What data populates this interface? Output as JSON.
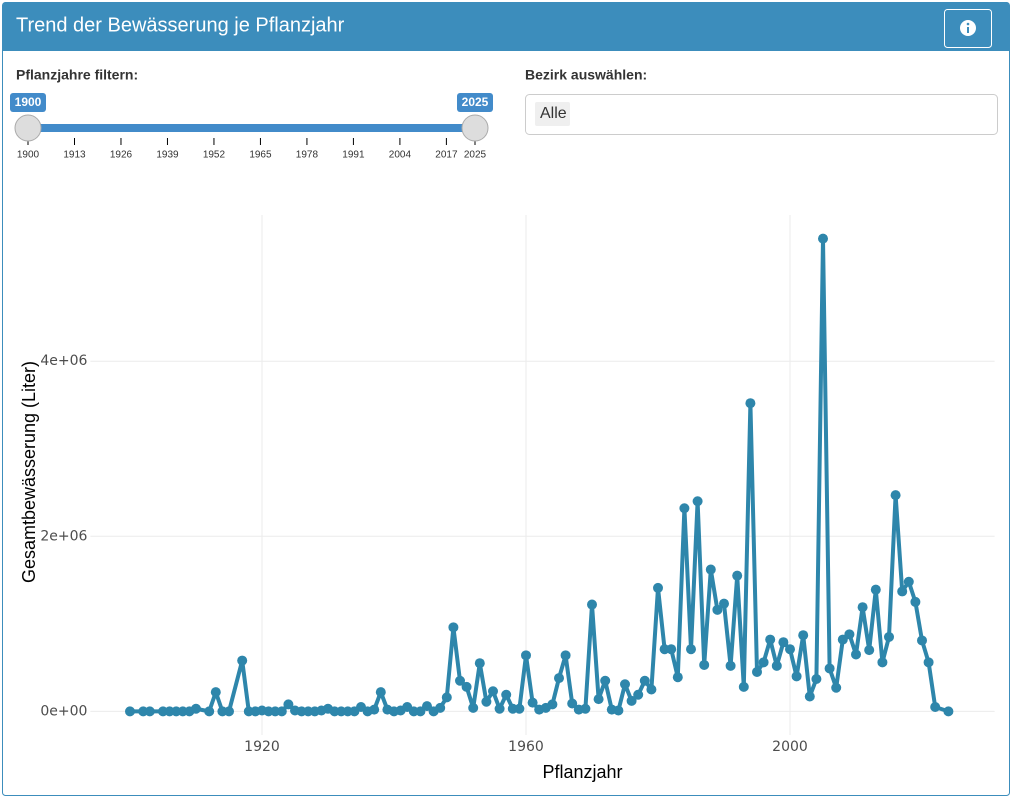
{
  "header": {
    "title": "Trend der Bewässerung je Pflanzjahr"
  },
  "filters": {
    "year_label": "Pflanzjahre filtern:",
    "year_from": 1900,
    "year_to": 2025,
    "year_ticks": [
      1900,
      1913,
      1926,
      1939,
      1952,
      1965,
      1978,
      1991,
      2004,
      2017,
      2025
    ],
    "district_label": "Bezirk auswählen:",
    "district_selected": "Alle"
  },
  "chart_data": {
    "type": "line",
    "xlabel": "Pflanzjahr",
    "ylabel": "Gesamtbewässerung (Liter)",
    "color": "#2e86ab",
    "grid": true,
    "xlim": [
      1894,
      2031
    ],
    "xticks": [
      1920,
      1960,
      2000
    ],
    "ylim": [
      -270000,
      5670000
    ],
    "yticks": [
      {
        "value": 0,
        "label": "0e+00"
      },
      {
        "value": 2000000,
        "label": "2e+06"
      },
      {
        "value": 4000000,
        "label": "4e+06"
      }
    ],
    "x": [
      1900,
      1902,
      1903,
      1905,
      1906,
      1907,
      1908,
      1909,
      1910,
      1912,
      1913,
      1914,
      1915,
      1917,
      1918,
      1919,
      1920,
      1921,
      1922,
      1923,
      1924,
      1925,
      1926,
      1927,
      1928,
      1929,
      1930,
      1931,
      1932,
      1933,
      1934,
      1935,
      1936,
      1937,
      1938,
      1939,
      1940,
      1941,
      1942,
      1943,
      1944,
      1945,
      1946,
      1947,
      1948,
      1949,
      1950,
      1951,
      1952,
      1953,
      1954,
      1955,
      1956,
      1957,
      1958,
      1959,
      1960,
      1961,
      1962,
      1963,
      1964,
      1965,
      1966,
      1967,
      1968,
      1969,
      1970,
      1971,
      1972,
      1973,
      1974,
      1975,
      1976,
      1977,
      1978,
      1979,
      1980,
      1981,
      1982,
      1983,
      1984,
      1985,
      1986,
      1987,
      1988,
      1989,
      1990,
      1991,
      1992,
      1993,
      1994,
      1995,
      1996,
      1997,
      1998,
      1999,
      2000,
      2001,
      2002,
      2003,
      2004,
      2005,
      2006,
      2007,
      2008,
      2009,
      2010,
      2011,
      2012,
      2013,
      2014,
      2015,
      2016,
      2017,
      2018,
      2019,
      2020,
      2021,
      2022,
      2024
    ],
    "values": [
      0,
      0,
      0,
      0,
      0,
      0,
      0,
      0,
      30000,
      0,
      220000,
      0,
      0,
      580000,
      0,
      0,
      10000,
      0,
      0,
      0,
      80000,
      10000,
      0,
      0,
      0,
      10000,
      30000,
      0,
      0,
      0,
      0,
      50000,
      0,
      20000,
      220000,
      20000,
      0,
      10000,
      50000,
      0,
      0,
      60000,
      0,
      40000,
      160000,
      960000,
      350000,
      280000,
      40000,
      550000,
      110000,
      230000,
      30000,
      190000,
      30000,
      30000,
      640000,
      100000,
      20000,
      40000,
      80000,
      380000,
      640000,
      90000,
      20000,
      30000,
      1220000,
      140000,
      350000,
      20000,
      10000,
      310000,
      120000,
      190000,
      350000,
      250000,
      1410000,
      710000,
      710000,
      390000,
      2320000,
      710000,
      2400000,
      530000,
      1620000,
      1160000,
      1230000,
      520000,
      1550000,
      280000,
      3520000,
      450000,
      560000,
      820000,
      520000,
      790000,
      710000,
      400000,
      870000,
      170000,
      370000,
      5400000,
      490000,
      270000,
      820000,
      880000,
      650000,
      1190000,
      700000,
      1390000,
      560000,
      850000,
      2470000,
      1370000,
      1480000,
      1250000,
      810000,
      560000,
      50000,
      0
    ]
  }
}
